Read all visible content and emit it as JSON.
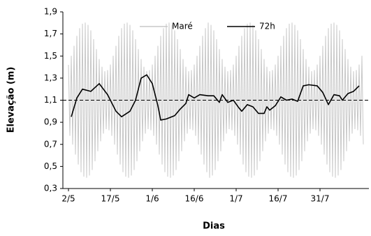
{
  "chart_data": {
    "type": "line",
    "x_label": "Dias",
    "y_label": "Elevação (m)",
    "xlim": [
      -2,
      107.5
    ],
    "ylim": [
      0.3,
      1.9
    ],
    "xticks": [
      {
        "value": 0,
        "label": "2/5"
      },
      {
        "value": 15,
        "label": "17/5"
      },
      {
        "value": 30,
        "label": "1/6"
      },
      {
        "value": 45,
        "label": "16/6"
      },
      {
        "value": 60,
        "label": "1/7"
      },
      {
        "value": 75,
        "label": "16/7"
      },
      {
        "value": 90,
        "label": "31/7"
      }
    ],
    "yticks": [
      {
        "value": 0.3,
        "label": "0,3"
      },
      {
        "value": 0.5,
        "label": "0,5"
      },
      {
        "value": 0.7,
        "label": "0,7"
      },
      {
        "value": 0.9,
        "label": "0,9"
      },
      {
        "value": 1.1,
        "label": "1,1"
      },
      {
        "value": 1.3,
        "label": "1,3"
      },
      {
        "value": 1.5,
        "label": "1,5"
      },
      {
        "value": 1.7,
        "label": "1,7"
      },
      {
        "value": 1.9,
        "label": "1,9"
      }
    ],
    "reference_line": 1.1,
    "legend_position": "top",
    "series": [
      {
        "name": "Maré",
        "color": "#c8c8c8",
        "x": [
          0,
          0.5,
          1,
          1.5,
          2,
          2.5,
          3,
          3.5,
          4,
          4.5,
          5,
          5.5,
          6,
          6.5,
          7,
          7.5,
          8,
          8.5,
          9,
          9.5,
          10,
          10.5,
          11,
          11.5,
          12,
          12.5,
          13,
          13.5,
          14,
          14.5,
          15,
          15.5,
          16,
          16.5,
          17,
          17.5,
          18,
          18.5,
          19,
          19.5,
          20,
          20.5,
          21,
          21.5,
          22,
          22.5,
          23,
          23.5,
          24,
          24.5,
          25,
          25.5,
          26,
          26.5,
          27,
          27.5,
          28,
          28.5,
          29,
          29.5,
          30,
          30.5,
          31,
          31.5,
          32,
          32.5,
          33,
          33.5,
          34,
          34.5,
          35,
          35.5,
          36,
          36.5,
          37,
          37.5,
          38,
          38.5,
          39,
          39.5,
          40,
          40.5,
          41,
          41.5,
          42,
          42.5,
          43,
          43.5,
          44,
          44.5,
          45,
          45.5,
          46,
          46.5,
          47,
          47.5,
          48,
          48.5,
          49,
          49.5,
          50,
          50.5,
          51,
          51.5,
          52,
          52.5,
          53,
          53.5,
          54,
          54.5,
          55,
          55.5,
          56,
          56.5,
          57,
          57.5,
          58,
          58.5,
          59,
          59.5,
          60,
          60.5,
          61,
          61.5,
          62,
          62.5,
          63,
          63.5,
          64,
          64.5,
          65,
          65.5,
          66,
          66.5,
          67,
          67.5,
          68,
          68.5,
          69,
          69.5,
          70,
          70.5,
          71,
          71.5,
          72,
          72.5,
          73,
          73.5,
          74,
          74.5,
          75,
          75.5,
          76,
          76.5,
          77,
          77.5,
          78,
          78.5,
          79,
          79.5,
          80,
          80.5,
          81,
          81.5,
          82,
          82.5,
          83,
          83.5,
          84,
          84.5,
          85,
          85.5,
          86,
          86.5,
          87,
          87.5,
          88,
          88.5,
          89,
          89.5,
          90,
          90.5,
          91,
          91.5,
          92,
          92.5,
          93,
          93.5,
          94,
          94.5,
          95,
          95.5,
          96,
          96.5,
          97,
          97.5,
          98,
          98.5,
          99,
          99.5,
          100,
          100.5,
          101,
          101.5,
          102,
          102.5,
          103,
          103.5,
          104,
          104.5,
          105,
          105.5
        ],
        "values": [
          1.42,
          0.78,
          1.5,
          0.7,
          1.59,
          0.61,
          1.68,
          0.52,
          1.75,
          0.45,
          1.79,
          0.41,
          1.8,
          0.4,
          1.78,
          0.42,
          1.73,
          0.47,
          1.65,
          0.55,
          1.56,
          0.64,
          1.47,
          0.73,
          1.4,
          0.8,
          1.36,
          0.84,
          1.37,
          0.83,
          1.42,
          0.78,
          1.5,
          0.7,
          1.59,
          0.61,
          1.68,
          0.52,
          1.75,
          0.45,
          1.79,
          0.41,
          1.8,
          0.4,
          1.78,
          0.42,
          1.73,
          0.47,
          1.65,
          0.55,
          1.56,
          0.64,
          1.47,
          0.73,
          1.4,
          0.8,
          1.36,
          0.84,
          1.37,
          0.83,
          1.42,
          0.78,
          1.5,
          0.7,
          1.59,
          0.61,
          1.68,
          0.52,
          1.75,
          0.45,
          1.79,
          0.41,
          1.8,
          0.4,
          1.78,
          0.42,
          1.73,
          0.47,
          1.65,
          0.55,
          1.56,
          0.64,
          1.47,
          0.73,
          1.4,
          0.8,
          1.36,
          0.84,
          1.37,
          0.83,
          1.42,
          0.78,
          1.5,
          0.7,
          1.59,
          0.61,
          1.68,
          0.52,
          1.75,
          0.45,
          1.8,
          0.4,
          1.78,
          0.42,
          1.73,
          0.47,
          1.65,
          0.55,
          1.56,
          0.64,
          1.47,
          0.73,
          1.4,
          0.8,
          1.36,
          0.84,
          1.37,
          0.83,
          1.42,
          0.78,
          1.5,
          0.7,
          1.59,
          0.61,
          1.68,
          0.52,
          1.75,
          0.45,
          1.79,
          0.41,
          1.8,
          0.4,
          1.78,
          0.42,
          1.73,
          0.47,
          1.65,
          0.55,
          1.56,
          0.64,
          1.47,
          0.73,
          1.4,
          0.8,
          1.36,
          0.84,
          1.37,
          0.83,
          1.42,
          0.78,
          1.5,
          0.7,
          1.59,
          0.61,
          1.68,
          0.52,
          1.75,
          0.45,
          1.79,
          0.41,
          1.8,
          0.4,
          1.78,
          0.42,
          1.73,
          0.47,
          1.65,
          0.55,
          1.56,
          0.64,
          1.47,
          0.73,
          1.4,
          0.8,
          1.36,
          0.84,
          1.37,
          0.83,
          1.42,
          0.78,
          1.5,
          0.7,
          1.59,
          0.61,
          1.68,
          0.52,
          1.75,
          0.45,
          1.79,
          0.41,
          1.8,
          0.4,
          1.78,
          0.42,
          1.73,
          0.47,
          1.65,
          0.55,
          1.56,
          0.64,
          1.47,
          0.73,
          1.4,
          0.8,
          1.36,
          0.84,
          1.37,
          0.83,
          1.42,
          0.78,
          1.5,
          0.7
        ]
      },
      {
        "name": "72h",
        "color": "#000000",
        "x": [
          1,
          3,
          5,
          8,
          11,
          14,
          17,
          19,
          22,
          24,
          26,
          28,
          30,
          32,
          33,
          35,
          38,
          40,
          42,
          43,
          45,
          47,
          50,
          52,
          54,
          55,
          57,
          59,
          61,
          62,
          64,
          66,
          68,
          70,
          71,
          72,
          74,
          76,
          78,
          80,
          82,
          84,
          86,
          89,
          91,
          93,
          95,
          97,
          98,
          100,
          102,
          104
        ],
        "values": [
          0.95,
          1.12,
          1.2,
          1.18,
          1.25,
          1.15,
          1.0,
          0.95,
          1.0,
          1.1,
          1.3,
          1.33,
          1.25,
          1.05,
          0.92,
          0.93,
          0.96,
          1.02,
          1.07,
          1.15,
          1.12,
          1.15,
          1.14,
          1.14,
          1.08,
          1.15,
          1.08,
          1.1,
          1.03,
          1.0,
          1.06,
          1.04,
          0.98,
          0.98,
          1.04,
          1.01,
          1.05,
          1.13,
          1.1,
          1.11,
          1.09,
          1.23,
          1.24,
          1.23,
          1.17,
          1.06,
          1.15,
          1.14,
          1.1,
          1.16,
          1.18,
          1.23
        ]
      }
    ]
  }
}
